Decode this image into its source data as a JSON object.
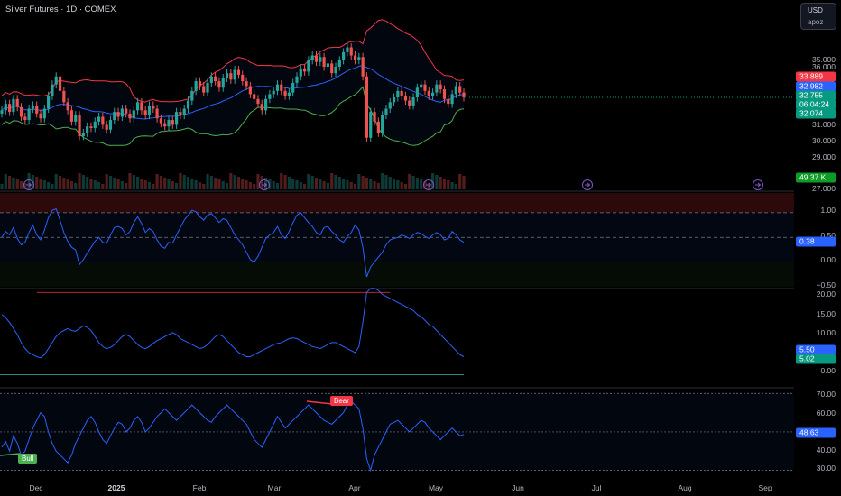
{
  "header": {
    "title": "Silver Futures · 1D · COMEX"
  },
  "currency": {
    "code": "USD",
    "mode": "apoz"
  },
  "price_axis": {
    "ticks": [
      "36.000",
      "35.000",
      "31.000",
      "30.000",
      "29.000",
      "27.000"
    ]
  },
  "price_tags": {
    "upper_band": "33.889",
    "basis": "32.982",
    "last": "32.755",
    "countdown": "06:04:24",
    "lower_band": "32.074",
    "volume": "49.37 K"
  },
  "pane2": {
    "ticks": [
      "1.00",
      "0.50",
      "0.00",
      "−0.50"
    ],
    "value_tag": "0.38"
  },
  "pane3": {
    "ticks": [
      "20.00",
      "15.00",
      "10.00",
      "0.00"
    ],
    "tag_a": "5.50",
    "tag_b": "5.02"
  },
  "pane4": {
    "ticks": [
      "70.00",
      "60.00",
      "40.00",
      "30.00"
    ],
    "value_tag": "48.63"
  },
  "signals": {
    "bear": "Bear",
    "bull": "Bull"
  },
  "date_axis": [
    "Dec",
    "2025",
    "Feb",
    "Mar",
    "Apr",
    "May",
    "Jun",
    "Jul",
    "Aug",
    "Sep"
  ],
  "colors": {
    "up": "#26a69a",
    "down": "#ef5350",
    "basis": "#2962ff",
    "upper": "#f23645",
    "lower": "#4caf50",
    "line": "#2962ff",
    "bg": "#000000"
  },
  "chart_data": {
    "type": "line",
    "price_closes": [
      31.9,
      32.3,
      31.8,
      32.6,
      32.1,
      31.5,
      31.3,
      32.0,
      32.2,
      31.7,
      31.4,
      32.0,
      32.8,
      33.5,
      34.0,
      33.1,
      32.4,
      31.9,
      31.2,
      31.6,
      30.3,
      30.5,
      30.9,
      30.8,
      31.2,
      31.5,
      31.0,
      30.7,
      31.3,
      31.8,
      31.5,
      32.0,
      31.7,
      31.4,
      31.9,
      32.4,
      31.9,
      31.6,
      32.2,
      32.0,
      31.4,
      31.1,
      30.9,
      31.3,
      31.0,
      31.8,
      31.6,
      32.0,
      32.5,
      33.1,
      33.7,
      33.4,
      33.0,
      33.6,
      34.0,
      33.7,
      33.3,
      33.9,
      34.2,
      33.8,
      34.4,
      34.1,
      33.7,
      33.4,
      32.9,
      32.6,
      32.3,
      31.9,
      32.6,
      32.9,
      33.1,
      33.5,
      33.1,
      32.8,
      33.0,
      33.6,
      34.0,
      34.5,
      34.3,
      35.0,
      35.3,
      34.9,
      35.2,
      34.6,
      34.8,
      34.2,
      34.6,
      35.0,
      35.5,
      35.8,
      35.3,
      35.0,
      35.2,
      34.0,
      30.2,
      31.8,
      31.2,
      30.5,
      31.6,
      32.0,
      32.4,
      32.7,
      33.1,
      32.8,
      32.5,
      32.2,
      32.7,
      33.3,
      33.5,
      33.1,
      32.8,
      33.0,
      33.5,
      33.2,
      32.6,
      32.3,
      32.9,
      33.4,
      33.0,
      32.7
    ],
    "volume_label": "49.37 K",
    "oscillator_values": [
      0.5,
      0.62,
      0.55,
      0.7,
      0.48,
      0.35,
      0.4,
      0.6,
      0.75,
      0.55,
      0.45,
      0.65,
      0.9,
      1.05,
      1.08,
      0.85,
      0.6,
      0.42,
      0.3,
      0.25,
      -0.05,
      0.05,
      0.18,
      0.3,
      0.42,
      0.5,
      0.4,
      0.38,
      0.55,
      0.7,
      0.72,
      0.68,
      0.55,
      0.62,
      0.8,
      0.92,
      0.78,
      0.6,
      0.68,
      0.62,
      0.45,
      0.32,
      0.28,
      0.4,
      0.38,
      0.55,
      0.7,
      0.85,
      0.95,
      1.05,
      1.02,
      0.92,
      0.85,
      0.95,
      0.98,
      0.9,
      0.8,
      0.88,
      0.85,
      0.7,
      0.55,
      0.45,
      0.35,
      0.2,
      0.05,
      0.0,
      0.12,
      0.3,
      0.48,
      0.55,
      0.6,
      0.72,
      0.55,
      0.48,
      0.62,
      0.8,
      0.95,
      1.0,
      0.9,
      0.8,
      0.72,
      0.6,
      0.55,
      0.7,
      0.72,
      0.62,
      0.55,
      0.45,
      0.4,
      0.52,
      0.6,
      0.75,
      0.65,
      0.3,
      -0.3,
      -0.1,
      0.0,
      0.1,
      0.2,
      0.35,
      0.45,
      0.48,
      0.5,
      0.55,
      0.52,
      0.48,
      0.55,
      0.6,
      0.58,
      0.52,
      0.48,
      0.55,
      0.6,
      0.55,
      0.45,
      0.48,
      0.62,
      0.55,
      0.45,
      0.4
    ],
    "oscillator_levels": [
      1.0,
      0.5,
      0.0
    ],
    "oscillator_last": 0.38,
    "band_width_values": [
      16.0,
      15.2,
      14.0,
      12.5,
      11.0,
      9.0,
      7.5,
      6.5,
      6.0,
      5.5,
      5.2,
      6.0,
      7.5,
      9.0,
      10.5,
      11.5,
      12.0,
      12.5,
      12.0,
      11.8,
      12.5,
      13.2,
      12.8,
      12.0,
      10.5,
      9.0,
      8.0,
      7.5,
      7.8,
      8.5,
      9.5,
      10.5,
      11.0,
      10.5,
      9.5,
      8.5,
      7.8,
      7.5,
      8.0,
      8.8,
      9.5,
      10.0,
      10.5,
      11.0,
      11.5,
      11.0,
      10.0,
      9.5,
      9.0,
      8.5,
      8.0,
      7.5,
      7.8,
      8.5,
      9.5,
      10.5,
      11.0,
      10.5,
      9.5,
      8.5,
      7.5,
      6.5,
      6.0,
      5.5,
      5.5,
      6.0,
      6.5,
      7.0,
      7.5,
      8.0,
      8.5,
      8.8,
      9.0,
      9.5,
      10.0,
      10.2,
      10.0,
      9.5,
      9.0,
      8.5,
      8.0,
      7.8,
      7.5,
      8.0,
      8.5,
      9.0,
      9.0,
      8.5,
      8.0,
      7.5,
      7.0,
      6.5,
      8.0,
      14.0,
      21.5,
      22.5,
      22.5,
      22.0,
      21.0,
      20.5,
      20.0,
      19.5,
      19.0,
      18.5,
      18.0,
      17.5,
      17.0,
      16.0,
      15.5,
      14.5,
      13.5,
      13.0,
      12.0,
      11.0,
      10.0,
      9.0,
      8.0,
      7.0,
      6.0,
      5.5
    ],
    "band_width_last": 5.5,
    "band_width_ref": 5.02,
    "rsi_values": [
      42,
      45,
      40,
      48,
      44,
      38,
      40,
      46,
      52,
      56,
      60,
      58,
      50,
      44,
      40,
      38,
      36,
      34,
      38,
      44,
      48,
      52,
      56,
      58,
      55,
      50,
      46,
      44,
      48,
      52,
      55,
      54,
      50,
      52,
      56,
      58,
      55,
      50,
      52,
      55,
      58,
      60,
      62,
      60,
      58,
      56,
      58,
      60,
      62,
      64,
      62,
      60,
      58,
      56,
      55,
      58,
      60,
      62,
      64,
      62,
      60,
      58,
      56,
      54,
      50,
      46,
      44,
      42,
      46,
      50,
      54,
      58,
      55,
      52,
      54,
      56,
      58,
      60,
      62,
      64,
      62,
      60,
      58,
      56,
      55,
      54,
      56,
      58,
      60,
      64,
      66,
      64,
      62,
      52,
      36,
      30,
      38,
      42,
      46,
      50,
      54,
      55,
      56,
      54,
      52,
      50,
      52,
      54,
      56,
      55,
      52,
      50,
      48,
      46,
      48,
      50,
      52,
      50,
      48,
      48.63
    ],
    "rsi_levels": [
      70,
      50,
      30
    ],
    "rsi_last": 48.63,
    "date_labels": [
      "Dec",
      "2025",
      "Feb",
      "Mar",
      "Apr",
      "May",
      "Jun",
      "Jul",
      "Aug",
      "Sep"
    ]
  }
}
